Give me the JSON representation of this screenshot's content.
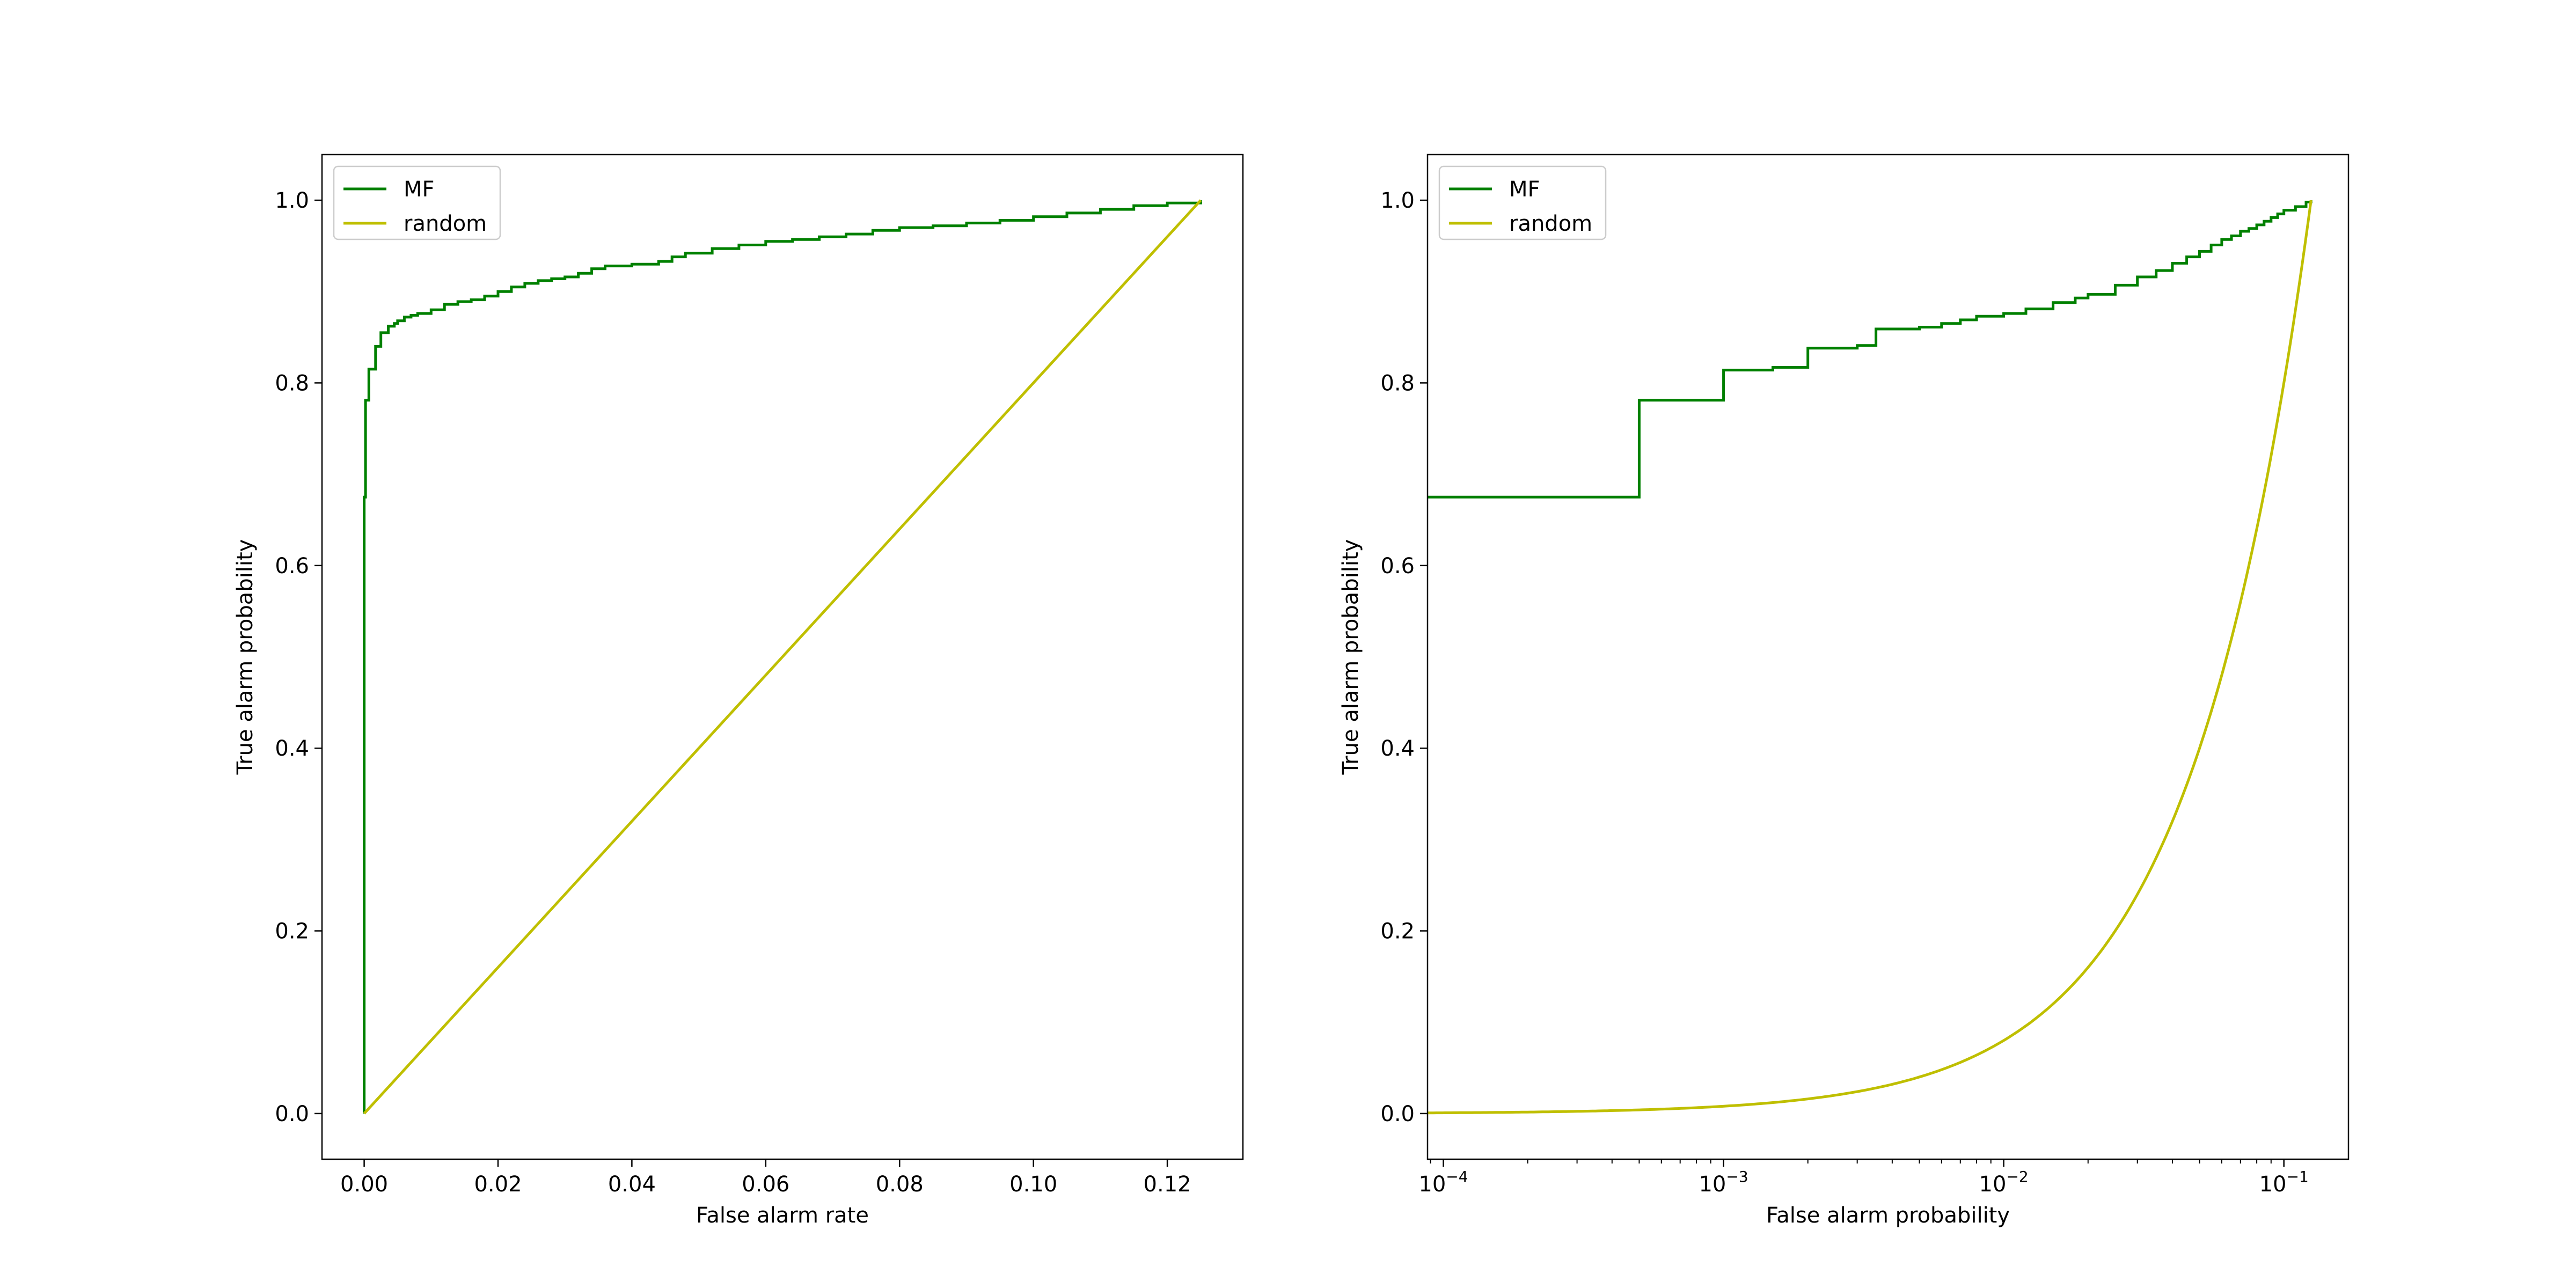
{
  "chart_data": [
    {
      "type": "line",
      "xlabel": "False alarm rate",
      "ylabel": "True alarm probability",
      "xscale": "linear",
      "xlim": [
        -0.0063,
        0.1313
      ],
      "ylim": [
        -0.05,
        1.05
      ],
      "xticks": [
        0.0,
        0.02,
        0.04,
        0.06,
        0.08,
        0.1,
        0.12
      ],
      "xtick_labels": [
        "0.00",
        "0.02",
        "0.04",
        "0.06",
        "0.08",
        "0.10",
        "0.12"
      ],
      "yticks": [
        0.0,
        0.2,
        0.4,
        0.6,
        0.8,
        1.0
      ],
      "ytick_labels": [
        "0.0",
        "0.2",
        "0.4",
        "0.6",
        "0.8",
        "1.0"
      ],
      "grid": false,
      "legend": "top-left",
      "series": [
        {
          "name": "MF",
          "color": "#008000",
          "drawstyle": "steps",
          "x": [
            0,
            0,
            0.0002,
            0.0002,
            0.0007,
            0.0007,
            0.0017,
            0.0017,
            0.0025,
            0.0025,
            0.0036,
            0.0036,
            0.0045,
            0.005,
            0.006,
            0.007,
            0.008,
            0.01,
            0.012,
            0.014,
            0.016,
            0.018,
            0.02,
            0.022,
            0.024,
            0.026,
            0.028,
            0.03,
            0.032,
            0.034,
            0.036,
            0.04,
            0.044,
            0.046,
            0.048,
            0.052,
            0.056,
            0.06,
            0.064,
            0.068,
            0.072,
            0.076,
            0.08,
            0.085,
            0.09,
            0.095,
            0.1,
            0.105,
            0.11,
            0.115,
            0.12,
            0.125
          ],
          "y": [
            0,
            0.675,
            0.675,
            0.781,
            0.781,
            0.815,
            0.815,
            0.84,
            0.84,
            0.855,
            0.855,
            0.862,
            0.865,
            0.868,
            0.872,
            0.874,
            0.876,
            0.88,
            0.886,
            0.889,
            0.891,
            0.895,
            0.9,
            0.905,
            0.909,
            0.912,
            0.914,
            0.916,
            0.92,
            0.925,
            0.928,
            0.93,
            0.933,
            0.938,
            0.942,
            0.947,
            0.951,
            0.955,
            0.957,
            0.96,
            0.963,
            0.967,
            0.97,
            0.972,
            0.975,
            0.978,
            0.982,
            0.986,
            0.99,
            0.994,
            0.997,
            1.0
          ]
        },
        {
          "name": "random",
          "color": "#bfbf00",
          "drawstyle": "line",
          "x": [
            0,
            0.125
          ],
          "y": [
            0,
            1.0
          ]
        }
      ]
    },
    {
      "type": "line",
      "xlabel": "False alarm probability",
      "ylabel": "True alarm probability",
      "xscale": "log",
      "xlim": [
        8.78e-05,
        0.17
      ],
      "ylim": [
        -0.05,
        1.05
      ],
      "xticks": [
        0.0001,
        0.001,
        0.01,
        0.1
      ],
      "xtick_labels": [
        {
          "base": "10",
          "exp": "−4"
        },
        {
          "base": "10",
          "exp": "−3"
        },
        {
          "base": "10",
          "exp": "−2"
        },
        {
          "base": "10",
          "exp": "−1"
        }
      ],
      "yticks": [
        0.0,
        0.2,
        0.4,
        0.6,
        0.8,
        1.0
      ],
      "ytick_labels": [
        "0.0",
        "0.2",
        "0.4",
        "0.6",
        "0.8",
        "1.0"
      ],
      "grid": false,
      "legend": "top-left",
      "series": [
        {
          "name": "MF",
          "color": "#008000",
          "drawstyle": "steps",
          "x": [
            8.78e-05,
            0.0005,
            0.0005,
            0.001,
            0.001,
            0.0015,
            0.0015,
            0.002,
            0.002,
            0.0025,
            0.003,
            0.0035,
            0.0035,
            0.005,
            0.006,
            0.007,
            0.008,
            0.01,
            0.012,
            0.015,
            0.018,
            0.02,
            0.025,
            0.03,
            0.035,
            0.04,
            0.045,
            0.05,
            0.055,
            0.06,
            0.065,
            0.07,
            0.075,
            0.08,
            0.085,
            0.09,
            0.095,
            0.1,
            0.11,
            0.12,
            0.125
          ],
          "y": [
            0.675,
            0.675,
            0.781,
            0.781,
            0.814,
            0.814,
            0.817,
            0.817,
            0.838,
            0.838,
            0.841,
            0.841,
            0.859,
            0.861,
            0.865,
            0.869,
            0.873,
            0.876,
            0.881,
            0.888,
            0.893,
            0.897,
            0.907,
            0.916,
            0.923,
            0.931,
            0.938,
            0.944,
            0.951,
            0.957,
            0.961,
            0.966,
            0.969,
            0.973,
            0.977,
            0.981,
            0.985,
            0.989,
            0.993,
            0.998,
            1.0
          ]
        },
        {
          "name": "random",
          "color": "#bfbf00",
          "drawstyle": "line",
          "curve": "y = x / 0.125",
          "x": [
            8.78e-05,
            0.00015,
            0.0003,
            0.0005,
            0.001,
            0.002,
            0.003,
            0.005,
            0.0075,
            0.01,
            0.015,
            0.02,
            0.03,
            0.04,
            0.05,
            0.06,
            0.07,
            0.08,
            0.09,
            0.1,
            0.11,
            0.125
          ],
          "y": [
            0.0007,
            0.0012,
            0.0024,
            0.004,
            0.008,
            0.016,
            0.024,
            0.04,
            0.06,
            0.08,
            0.12,
            0.16,
            0.24,
            0.32,
            0.4,
            0.48,
            0.56,
            0.64,
            0.72,
            0.8,
            0.88,
            1.0
          ]
        }
      ]
    }
  ]
}
